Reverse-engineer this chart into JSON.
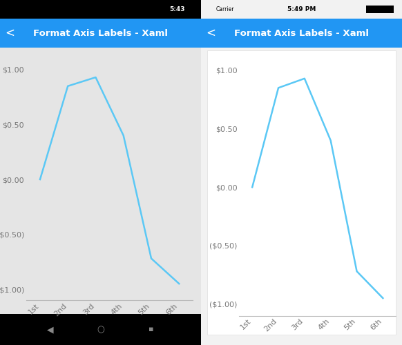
{
  "x_values": [
    1,
    2,
    3,
    4,
    5,
    6
  ],
  "y_values": [
    0.0,
    0.85,
    0.93,
    0.4,
    -0.72,
    -0.95
  ],
  "x_labels": [
    "1st",
    "2nd",
    "3rd",
    "4th",
    "5th",
    "6th"
  ],
  "y_ticks": [
    1.0,
    0.5,
    0.0,
    -0.5,
    -1.0
  ],
  "y_tick_labels": [
    "$1.00",
    "$0.50",
    "$0.00",
    "($0.50)",
    "($1.00)"
  ],
  "ylim": [
    -1.1,
    1.1
  ],
  "line_color": "#5BC8F5",
  "line_width": 1.8,
  "title": "Format Axis Labels - Xaml",
  "title_bg_color": "#2196F3",
  "chart_bg_left": "#E5E5E5",
  "chart_bg_right": "#FFFFFF",
  "left_status_bg": "#000000",
  "right_status_bg": "#F2F2F2",
  "left_phone_bg": "#1A1A1A",
  "right_phone_bg": "#F2F2F2",
  "left_nav_bg": "#000000",
  "tick_color": "#777777",
  "tick_fontsize": 8.0,
  "title_fontsize": 9.5
}
